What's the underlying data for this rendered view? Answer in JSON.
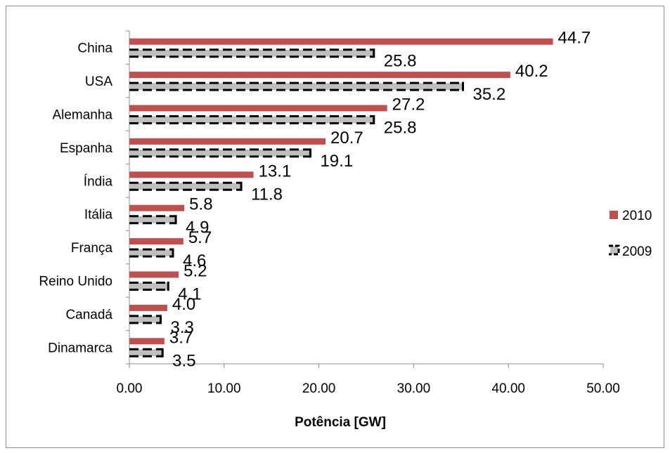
{
  "chart_data": {
    "type": "bar",
    "orientation": "horizontal",
    "categories": [
      "China",
      "USA",
      "Alemanha",
      "Espanha",
      "Índia",
      "Itália",
      "França",
      "Reino Unido",
      "Canadá",
      "Dinamarca"
    ],
    "series": [
      {
        "name": "2010",
        "values": [
          44.7,
          40.2,
          27.2,
          20.7,
          13.1,
          5.8,
          5.7,
          5.2,
          4.0,
          3.7
        ],
        "labels": [
          "44.7",
          "40.2",
          "27.2",
          "20.7",
          "13.1",
          "5.8",
          "5.7",
          "5.2",
          "4.0",
          "3.7"
        ],
        "color": "#c0504d",
        "style": "solid"
      },
      {
        "name": "2009",
        "values": [
          25.8,
          35.2,
          25.8,
          19.1,
          11.8,
          4.9,
          4.6,
          4.1,
          3.3,
          3.5
        ],
        "labels": [
          "25.8",
          "35.2",
          "25.8",
          "19.1",
          "11.8",
          "4.9",
          "4.6",
          "4.1",
          "3.3",
          "3.5"
        ],
        "color": "#bfbfbf",
        "style": "dashed"
      }
    ],
    "xlabel": "Potência [GW]",
    "xlim": [
      0,
      50
    ],
    "xticks": [
      "0.00",
      "10.00",
      "20.00",
      "30.00",
      "40.00",
      "50.00"
    ],
    "grid": false,
    "legend": "right"
  }
}
